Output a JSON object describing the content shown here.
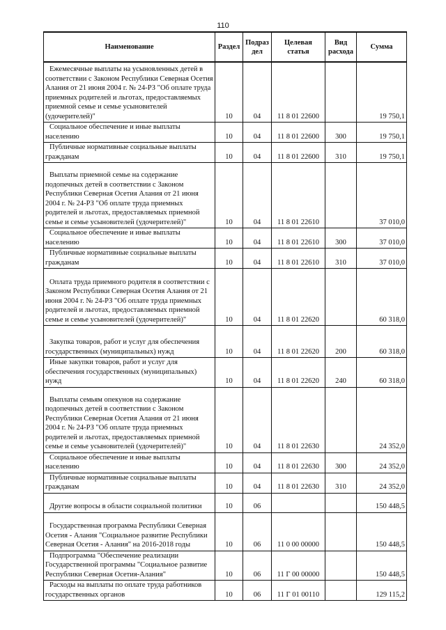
{
  "page_number": "110",
  "headers": [
    "Наименование",
    "Раздел",
    "Подраз дел",
    "Целевая статья",
    "Вид расхода",
    "Сумма"
  ],
  "rows": [
    {
      "name": "Ежемесячные выплаты на усыновленных детей в соответствии с Законом Республики Северная Осетия Алания от 21 июня 2004 г. № 24-РЗ \"Об оплате труда приемных родителей и льготах, предоставляемых приемной семье и семье усыновителей (удочерителей)\"",
      "razdel": "10",
      "podrazdel": "04",
      "article": "11 8 01 22600",
      "vid": "",
      "sum": "19 750,1"
    },
    {
      "name": "Социальное обеспечение и иные выплаты населению",
      "razdel": "10",
      "podrazdel": "04",
      "article": "11 8 01 22600",
      "vid": "300",
      "sum": "19 750,1"
    },
    {
      "name": "Публичные нормативные социальные выплаты гражданам",
      "razdel": "10",
      "podrazdel": "04",
      "article": "11 8 01 22600",
      "vid": "310",
      "sum": "19 750,1"
    },
    {
      "name": "Выплаты приемной семье на содержание подопечных детей в соответствии с Законом Республики Северная Осетия Алания от 21 июня 2004 г. № 24-РЗ \"Об оплате труда приемных родителей и льготах, предоставляемых приемной семье и семье усыновителей (удочерителей)\"",
      "razdel": "10",
      "podrazdel": "04",
      "article": "11 8 01 22610",
      "vid": "",
      "sum": "37 010,0"
    },
    {
      "name": "Социальное обеспечение и иные выплаты населению",
      "razdel": "10",
      "podrazdel": "04",
      "article": "11 8 01 22610",
      "vid": "300",
      "sum": "37 010,0"
    },
    {
      "name": "Публичные нормативные социальные выплаты гражданам",
      "razdel": "10",
      "podrazdel": "04",
      "article": "11 8 01 22610",
      "vid": "310",
      "sum": "37 010,0"
    },
    {
      "name": "Оплата труда приемного родителя в соответствии с Законом Республики Северная Осетия Алания от 21 июня 2004 г. № 24-РЗ \"Об оплате труда приемных родителей и льготах, предоставляемых приемной семье и семье усыновителей (удочерителей)\"",
      "razdel": "10",
      "podrazdel": "04",
      "article": "11 8 01 22620",
      "vid": "",
      "sum": "60 318,0"
    },
    {
      "name": "Закупка товаров, работ и услуг для обеспечения государственных (муниципальных) нужд",
      "razdel": "10",
      "podrazdel": "04",
      "article": "11 8 01 22620",
      "vid": "200",
      "sum": "60 318,0"
    },
    {
      "name": "Иные закупки товаров, работ и услуг для обеспечения государственных (муниципальных) нужд",
      "razdel": "10",
      "podrazdel": "04",
      "article": "11 8 01 22620",
      "vid": "240",
      "sum": "60 318,0"
    },
    {
      "name": "Выплаты семьям опекунов на содержание подопечных детей в соответствии с Законом Республики Северная Осетия Алания от 21 июня 2004 г. № 24-РЗ \"Об оплате труда приемных родителей и льготах, предоставляемых приемной семье и семье усыновителей (удочерителей)\"",
      "razdel": "10",
      "podrazdel": "04",
      "article": "11 8 01 22630",
      "vid": "",
      "sum": "24 352,0"
    },
    {
      "name": "Социальное обеспечение и иные выплаты населению",
      "razdel": "10",
      "podrazdel": "04",
      "article": "11 8 01 22630",
      "vid": "300",
      "sum": "24 352,0"
    },
    {
      "name": "Публичные нормативные социальные выплаты гражданам",
      "razdel": "10",
      "podrazdel": "04",
      "article": "11 8 01 22630",
      "vid": "310",
      "sum": "24 352,0"
    },
    {
      "name": "Другие вопросы в области социальной политики",
      "razdel": "10",
      "podrazdel": "06",
      "article": "",
      "vid": "",
      "sum": "150 448,5"
    },
    {
      "name": "Государственная программа Республики Северная Осетия - Алания \"Социальное развитие Республики Северная Осетия - Алания\" на 2016-2018 годы",
      "razdel": "10",
      "podrazdel": "06",
      "article": "11 0 00 00000",
      "vid": "",
      "sum": "150 448,5"
    },
    {
      "name": "Подпрограмма \"Обеспечение реализации Государственной программы \"Социальное развитие Республики Северная Осетия-Алания\"",
      "razdel": "10",
      "podrazdel": "06",
      "article": "11 Г 00 00000",
      "vid": "",
      "sum": "150 448,5"
    },
    {
      "name": "Расходы на выплаты по оплате труда работников государственных органов",
      "razdel": "10",
      "podrazdel": "06",
      "article": "11 Г 01 00110",
      "vid": "",
      "sum": "129 115,2"
    }
  ]
}
